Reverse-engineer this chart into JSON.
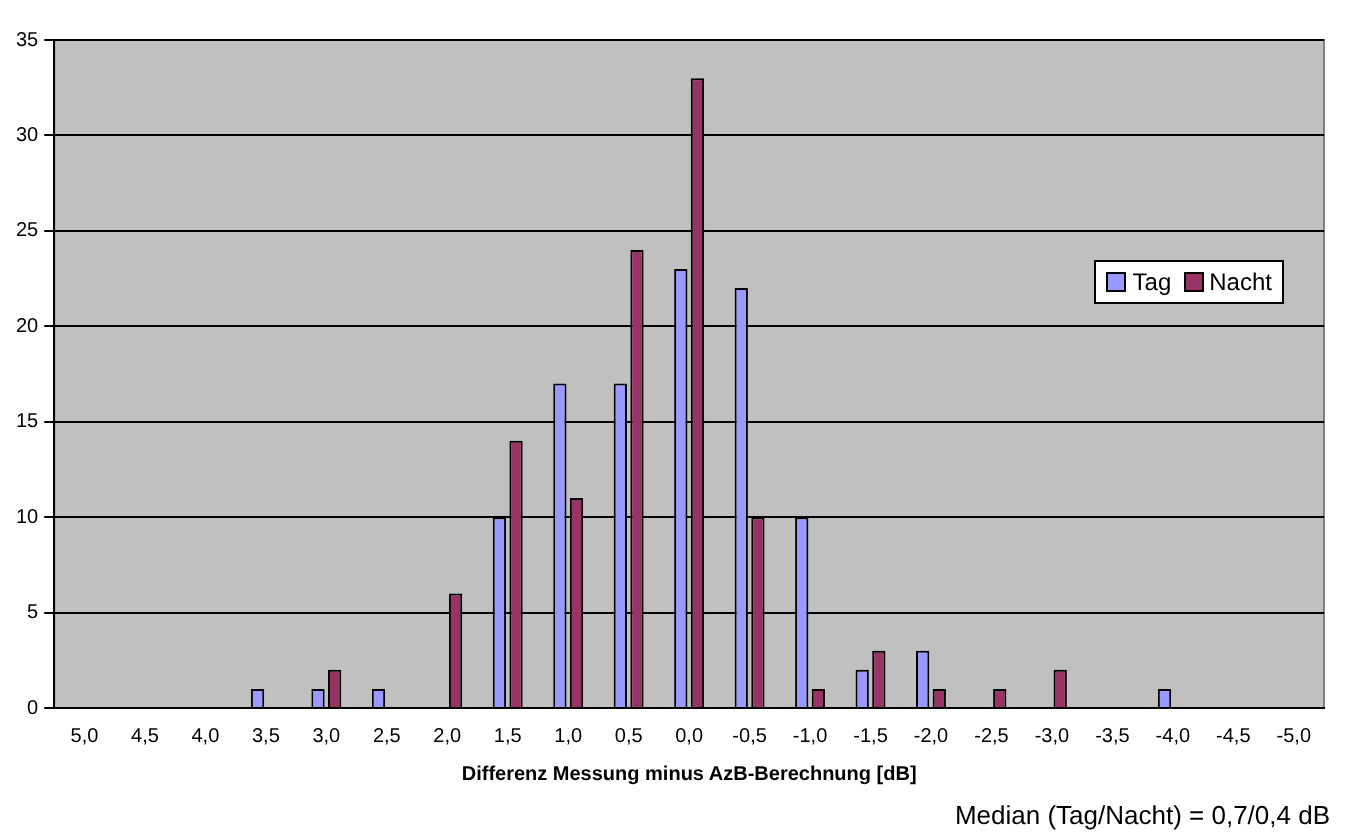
{
  "chart_data": {
    "type": "bar",
    "categories": [
      "5,0",
      "4,5",
      "4,0",
      "3,5",
      "3,0",
      "2,5",
      "2,0",
      "1,5",
      "1,0",
      "0,5",
      "0,0",
      "-0,5",
      "-1,0",
      "-1,5",
      "-2,0",
      "-2,5",
      "-3,0",
      "-3,5",
      "-4,0",
      "-4,5",
      "-5,0"
    ],
    "series": [
      {
        "name": "Tag",
        "color": "#9999ff",
        "values": [
          0,
          0,
          0,
          1,
          1,
          1,
          0,
          10,
          17,
          17,
          23,
          22,
          10,
          2,
          3,
          0,
          0,
          0,
          1,
          0,
          0
        ]
      },
      {
        "name": "Nacht",
        "color": "#993366",
        "values": [
          0,
          0,
          0,
          0,
          2,
          0,
          6,
          14,
          11,
          24,
          33,
          10,
          1,
          3,
          1,
          1,
          2,
          0,
          0,
          0,
          0
        ]
      }
    ],
    "xlabel": "Differenz Messung minus AzB-Berechnung [dB]",
    "ylim": [
      0,
      35
    ],
    "yticks": [
      0,
      5,
      10,
      15,
      20,
      25,
      30,
      35
    ],
    "grid": "y",
    "legend": "right",
    "annotations": [
      "Median (Tag/Nacht) = 0,7/0,4 dB"
    ]
  }
}
